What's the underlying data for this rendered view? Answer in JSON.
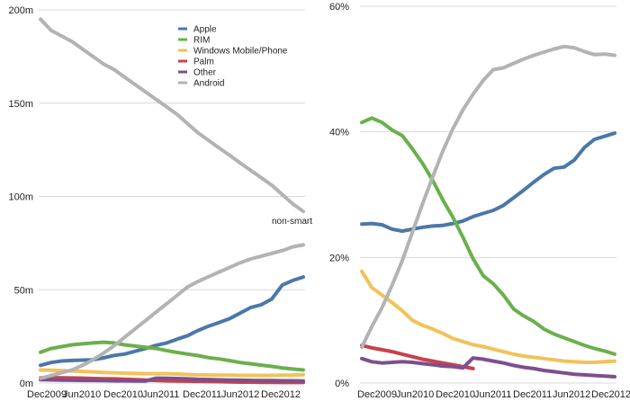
{
  "chart_data": [
    {
      "type": "line",
      "y_unit": "millions",
      "ylim": [
        0,
        200
      ],
      "yticks": [
        0,
        50,
        100,
        150,
        200
      ],
      "ytick_labels": [
        "0m",
        "50m",
        "100m",
        "150m",
        "200m"
      ],
      "x_tick_labels": [
        "Dec2009",
        "Jun2010",
        "Dec2010",
        "Jun2011",
        "Dec2011",
        "Jun2012",
        "Dec2012"
      ],
      "grid": true,
      "legend_position": "top-center",
      "annotation": "non-smart",
      "series": [
        {
          "name": "Apple",
          "color": "#4a78a8",
          "values": [
            9.5,
            11.0,
            11.8,
            12.1,
            12.3,
            12.5,
            13.5,
            14.8,
            15.5,
            17.0,
            18.5,
            20.2,
            21.5,
            23.5,
            25.4,
            28.2,
            30.5,
            32.5,
            34.5,
            37.5,
            40.5,
            42.0,
            45.0,
            52.5,
            55.0,
            56.8
          ]
        },
        {
          "name": "RIM",
          "color": "#6ab04c",
          "values": [
            16.5,
            18.5,
            19.5,
            20.5,
            21.0,
            21.5,
            21.9,
            21.5,
            20.5,
            19.8,
            19.2,
            18.5,
            17.4,
            16.4,
            15.5,
            14.7,
            13.6,
            12.9,
            12.0,
            11.0,
            10.3,
            9.6,
            8.9,
            8.1,
            7.5,
            7.0
          ]
        },
        {
          "name": "Windows Mobile/Phone",
          "color": "#f2c25a",
          "values": [
            7.0,
            6.9,
            6.7,
            6.5,
            6.2,
            6.0,
            5.7,
            5.5,
            5.3,
            5.1,
            5.0,
            5.0,
            5.0,
            4.8,
            4.6,
            4.4,
            4.3,
            4.2,
            4.2,
            4.1,
            4.1,
            4.1,
            4.1,
            4.2,
            4.3,
            4.5
          ]
        },
        {
          "name": "Palm",
          "color": "#c8414b",
          "values": [
            2.8,
            2.9,
            2.8,
            2.7,
            2.6,
            2.4,
            2.3,
            2.2,
            2.0,
            1.8,
            1.6,
            1.4,
            1.2,
            1.1,
            1.0,
            0.9,
            0.8,
            0.7,
            0.6,
            0.5,
            0.5,
            0.4,
            0.4,
            0.3,
            0.3,
            0.3
          ]
        },
        {
          "name": "Other",
          "color": "#7d4f8f",
          "values": [
            1.8,
            1.7,
            1.6,
            1.5,
            1.4,
            1.4,
            1.3,
            1.2,
            1.2,
            1.1,
            1.1,
            2.6,
            2.5,
            2.4,
            2.2,
            2.0,
            1.9,
            1.7,
            1.6,
            1.5,
            1.4,
            1.3,
            1.3,
            1.2,
            1.2,
            1.1
          ]
        },
        {
          "name": "Android",
          "color": "#b3b3b3",
          "values": [
            2.5,
            4.0,
            5.5,
            7.0,
            9.5,
            12.5,
            16.0,
            20.0,
            24.5,
            29.0,
            33.5,
            38.0,
            42.5,
            47.0,
            51.5,
            54.5,
            57.0,
            59.5,
            62.0,
            64.5,
            66.5,
            68.0,
            69.5,
            71.0,
            73.0,
            74.0
          ]
        },
        {
          "name": "non-smart",
          "color": "#b3b3b3",
          "values": [
            195,
            189,
            186,
            183,
            179,
            175,
            171,
            168,
            164,
            160,
            156,
            152,
            148,
            144,
            139,
            134,
            130,
            126,
            122,
            118,
            114,
            110,
            106,
            101,
            96,
            92
          ]
        }
      ]
    },
    {
      "type": "line",
      "y_unit": "percent",
      "ylim": [
        0,
        60
      ],
      "yticks": [
        0,
        20,
        40,
        60
      ],
      "ytick_labels": [
        "0%",
        "20%",
        "40%",
        "60%"
      ],
      "x_tick_labels": [
        "Dec2009",
        "Jun2010",
        "Dec2010",
        "Jun2011",
        "Dec2011",
        "Jun2012",
        "Dec2012"
      ],
      "grid": true,
      "series": [
        {
          "name": "Apple",
          "color": "#4a78a8",
          "values": [
            25.3,
            25.4,
            25.2,
            24.5,
            24.2,
            24.5,
            24.8,
            25.0,
            25.1,
            25.4,
            25.8,
            26.5,
            27.0,
            27.5,
            28.3,
            29.5,
            30.7,
            32.0,
            33.2,
            34.2,
            34.4,
            35.5,
            37.5,
            38.8,
            39.3,
            39.8
          ]
        },
        {
          "name": "RIM",
          "color": "#6ab04c",
          "values": [
            41.5,
            42.2,
            41.5,
            40.3,
            39.4,
            37.3,
            35.0,
            32.3,
            29.2,
            26.4,
            23.2,
            19.8,
            17.1,
            15.8,
            14.0,
            11.8,
            10.7,
            9.8,
            8.6,
            7.8,
            7.2,
            6.6,
            6.0,
            5.5,
            5.1,
            4.6
          ]
        },
        {
          "name": "Windows Mobile/Phone",
          "color": "#f2c25a",
          "values": [
            17.8,
            15.2,
            14.0,
            12.8,
            11.5,
            10.0,
            9.2,
            8.6,
            7.9,
            7.1,
            6.6,
            6.1,
            5.8,
            5.4,
            5.0,
            4.6,
            4.3,
            4.1,
            3.9,
            3.7,
            3.5,
            3.4,
            3.3,
            3.3,
            3.4,
            3.5
          ]
        },
        {
          "name": "Palm",
          "color": "#c8414b",
          "values": [
            6.0,
            5.6,
            5.3,
            5.0,
            4.6,
            4.2,
            3.8,
            3.5,
            3.2,
            2.9,
            2.6,
            2.3
          ]
        },
        {
          "name": "Other",
          "color": "#7d4f8f",
          "values": [
            3.9,
            3.4,
            3.2,
            3.3,
            3.4,
            3.3,
            3.1,
            2.9,
            2.7,
            2.6,
            2.4,
            4.0,
            3.8,
            3.5,
            3.2,
            2.8,
            2.5,
            2.3,
            2.0,
            1.8,
            1.6,
            1.4,
            1.3,
            1.2,
            1.1,
            1.0
          ]
        },
        {
          "name": "Android",
          "color": "#b3b3b3",
          "values": [
            5.7,
            9.0,
            12.0,
            15.6,
            19.5,
            24.0,
            28.5,
            32.8,
            36.9,
            40.5,
            43.5,
            46.0,
            48.2,
            49.9,
            50.2,
            50.9,
            51.6,
            52.2,
            52.7,
            53.2,
            53.6,
            53.4,
            52.8,
            52.3,
            52.4,
            52.2
          ]
        }
      ]
    }
  ]
}
